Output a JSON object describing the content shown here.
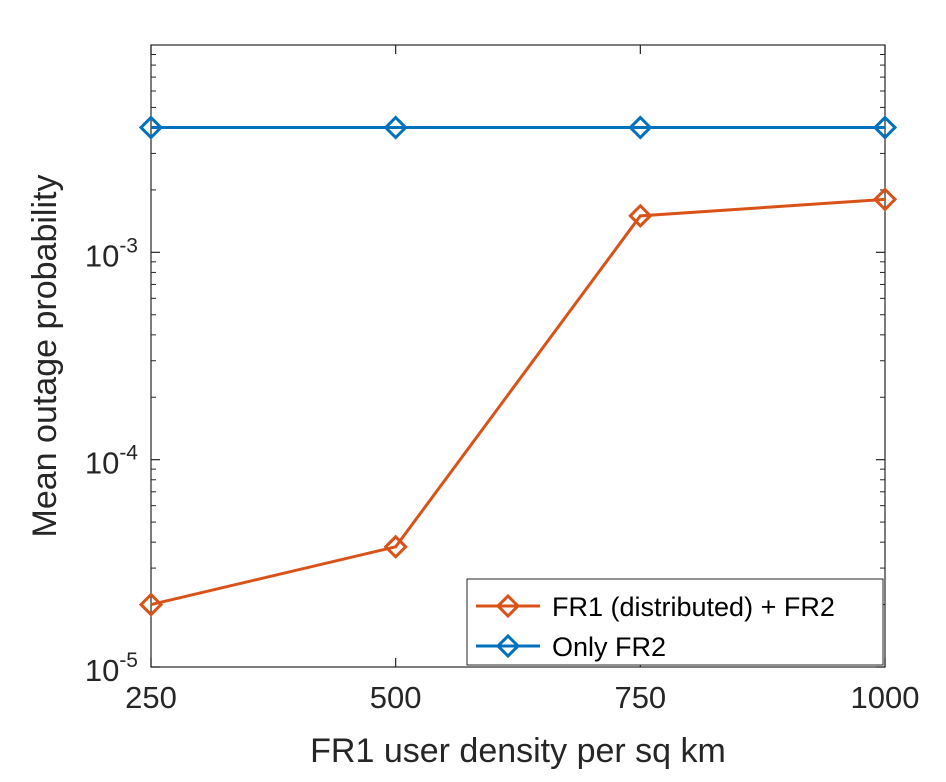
{
  "chart_data": {
    "type": "line",
    "title": "",
    "xlabel": "FR1 user density per sq km",
    "ylabel": "Mean outage probability",
    "x": [
      250,
      500,
      750,
      1000
    ],
    "xticks": [
      "250",
      "500",
      "750",
      "1000"
    ],
    "xlim": [
      250,
      1000
    ],
    "yscale": "log",
    "ylim": [
      1e-05,
      0.01
    ],
    "yticks": [
      {
        "value": 1e-05,
        "base": "10",
        "exp": "-5"
      },
      {
        "value": 0.0001,
        "base": "10",
        "exp": "-4"
      },
      {
        "value": 0.001,
        "base": "10",
        "exp": "-3"
      }
    ],
    "grid": false,
    "legend_position": "bottom-right",
    "series": [
      {
        "name": "FR1 (distributed) + FR2",
        "color": "#D95319",
        "marker": "diamond",
        "values": [
          2e-05,
          3.8e-05,
          0.0015,
          0.0018
        ]
      },
      {
        "name": "Only FR2",
        "color": "#0072BD",
        "marker": "diamond",
        "values": [
          0.004,
          0.004,
          0.004,
          0.004
        ]
      }
    ]
  }
}
